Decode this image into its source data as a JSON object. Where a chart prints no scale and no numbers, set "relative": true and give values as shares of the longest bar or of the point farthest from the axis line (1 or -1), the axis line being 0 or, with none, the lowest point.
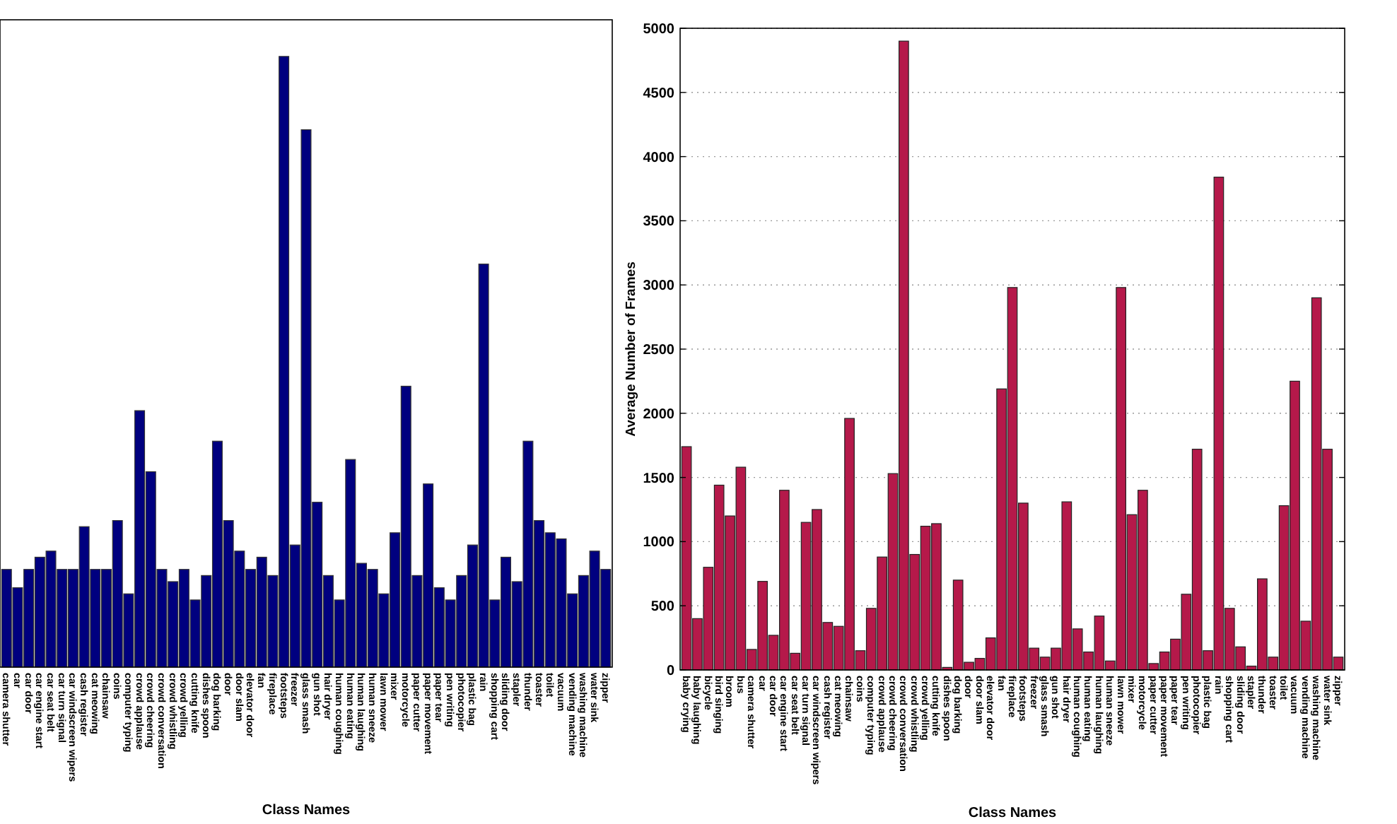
{
  "chart_data": [
    {
      "type": "bar",
      "relative": true,
      "xlabel": "Class Names",
      "color": "#00007f",
      "categories": [
        "camera shutter",
        "car",
        "car door",
        "car engine start",
        "car seat belt",
        "car turn signal",
        "car windscreen wipers",
        "cash register",
        "cat meowing",
        "chainsaw",
        "coins",
        "computer typing",
        "crowd applause",
        "crowd cheering",
        "crowd conversation",
        "crowd whistling",
        "crowd yelling",
        "cutting knife",
        "dishes spoon",
        "dog barking",
        "door",
        "door slam",
        "elevator door",
        "fan",
        "fireplace",
        "footsteps",
        "freezer",
        "glass smash",
        "gun shot",
        "hair dryer",
        "human coughing",
        "human eating",
        "human laughing",
        "human sneeze",
        "lawn mower",
        "mixer",
        "motorcycle",
        "paper cutter",
        "paper movement",
        "paper tear",
        "pen writing",
        "photocopier",
        "plastic bag",
        "rain",
        "shopping cart",
        "sliding door",
        "stapler",
        "thunder",
        "toaster",
        "toilet",
        "vacuum",
        "vending machine",
        "washing machine",
        "water sink",
        "zipper"
      ],
      "values": [
        0.16,
        0.13,
        0.16,
        0.18,
        0.19,
        0.16,
        0.16,
        0.23,
        0.16,
        0.16,
        0.24,
        0.12,
        0.42,
        0.32,
        0.16,
        0.14,
        0.16,
        0.11,
        0.15,
        0.37,
        0.24,
        0.19,
        0.16,
        0.18,
        0.15,
        1,
        0.2,
        0.88,
        0.27,
        0.15,
        0.11,
        0.34,
        0.17,
        0.16,
        0.12,
        0.22,
        0.46,
        0.15,
        0.3,
        0.13,
        0.11,
        0.15,
        0.2,
        0.66,
        0.11,
        0.18,
        0.14,
        0.37,
        0.24,
        0.22,
        0.21,
        0.12,
        0.15,
        0.19,
        0.16
      ]
    },
    {
      "type": "bar",
      "xlabel": "Class Names",
      "ylabel": "Average Number of Frames",
      "color": "#b5194a",
      "grid": "y",
      "ylim": [
        0,
        5000
      ],
      "yticks": [
        0,
        500,
        1000,
        1500,
        2000,
        2500,
        3000,
        3500,
        4000,
        4500,
        5000
      ],
      "categories": [
        "baby crying",
        "baby laughing",
        "bicycle",
        "bird singing",
        "broom",
        "bus",
        "camera shutter",
        "car",
        "car door",
        "car engine start",
        "car seat belt",
        "car turn signal",
        "car windscreen wipers",
        "cash register",
        "cat meowing",
        "chainsaw",
        "coins",
        "computer typing",
        "crowd applause",
        "crowd cheering",
        "crowd conversation",
        "crowd whistling",
        "crowd yelling",
        "cutting knife",
        "dishes spoon",
        "dog barking",
        "door",
        "door slam",
        "elevator door",
        "fan",
        "fireplace",
        "footsteps",
        "freezer",
        "glass smash",
        "gun shot",
        "hair dryer",
        "human coughing",
        "human eating",
        "human laughing",
        "human sneeze",
        "lawn mower",
        "mixer",
        "motorcycle",
        "paper cutter",
        "paper movement",
        "paper tear",
        "pen writing",
        "photocopier",
        "plastic bag",
        "rain",
        "shopping cart",
        "sliding door",
        "stapler",
        "thunder",
        "toaster",
        "toilet",
        "vacuum",
        "vending machine",
        "washing machine",
        "water sink",
        "zipper"
      ],
      "values": [
        1740,
        400,
        800,
        1440,
        1200,
        1580,
        160,
        690,
        270,
        1400,
        130,
        1150,
        1250,
        370,
        340,
        1960,
        150,
        480,
        880,
        1530,
        4900,
        900,
        1120,
        1140,
        20,
        700,
        60,
        90,
        250,
        2190,
        2980,
        1300,
        170,
        100,
        170,
        1310,
        320,
        140,
        420,
        70,
        2980,
        1210,
        1400,
        50,
        140,
        240,
        590,
        1720,
        150,
        3840,
        480,
        180,
        30,
        710,
        100,
        1280,
        2250,
        380,
        2900,
        1720,
        100
      ]
    }
  ]
}
